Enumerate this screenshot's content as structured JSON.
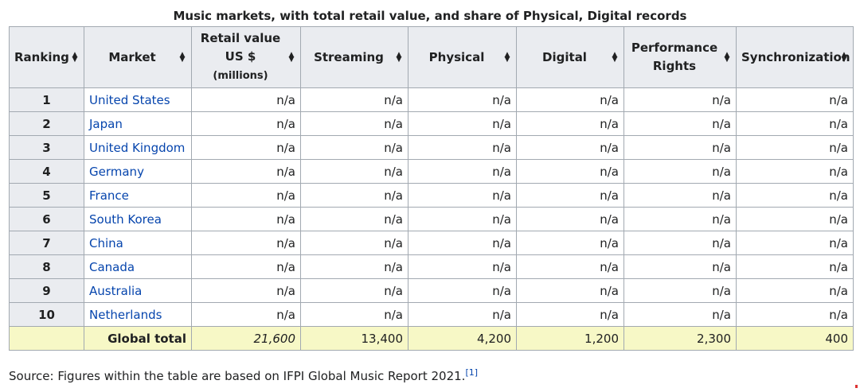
{
  "caption": "Music markets, with total retail value, and share of Physical, Digital records",
  "headers": {
    "ranking": "Ranking",
    "market": "Market",
    "retail_line1": "Retail value",
    "retail_line2": "US $",
    "retail_line3": "(millions)",
    "streaming": "Streaming",
    "physical": "Physical",
    "digital": "Digital",
    "performance_line1": "Performance",
    "performance_line2": "Rights",
    "synchronization": "Synchronization"
  },
  "sort_icon": "sort-updown-icon",
  "rows": [
    {
      "rank": "1",
      "market": "United States",
      "retail": "n/a",
      "streaming": "n/a",
      "physical": "n/a",
      "digital": "n/a",
      "performance": "n/a",
      "sync": "n/a"
    },
    {
      "rank": "2",
      "market": "Japan",
      "retail": "n/a",
      "streaming": "n/a",
      "physical": "n/a",
      "digital": "n/a",
      "performance": "n/a",
      "sync": "n/a"
    },
    {
      "rank": "3",
      "market": "United Kingdom",
      "retail": "n/a",
      "streaming": "n/a",
      "physical": "n/a",
      "digital": "n/a",
      "performance": "n/a",
      "sync": "n/a"
    },
    {
      "rank": "4",
      "market": "Germany",
      "retail": "n/a",
      "streaming": "n/a",
      "physical": "n/a",
      "digital": "n/a",
      "performance": "n/a",
      "sync": "n/a"
    },
    {
      "rank": "5",
      "market": "France",
      "retail": "n/a",
      "streaming": "n/a",
      "physical": "n/a",
      "digital": "n/a",
      "performance": "n/a",
      "sync": "n/a"
    },
    {
      "rank": "6",
      "market": "South Korea",
      "retail": "n/a",
      "streaming": "n/a",
      "physical": "n/a",
      "digital": "n/a",
      "performance": "n/a",
      "sync": "n/a"
    },
    {
      "rank": "7",
      "market": "China",
      "retail": "n/a",
      "streaming": "n/a",
      "physical": "n/a",
      "digital": "n/a",
      "performance": "n/a",
      "sync": "n/a"
    },
    {
      "rank": "8",
      "market": "Canada",
      "retail": "n/a",
      "streaming": "n/a",
      "physical": "n/a",
      "digital": "n/a",
      "performance": "n/a",
      "sync": "n/a"
    },
    {
      "rank": "9",
      "market": "Australia",
      "retail": "n/a",
      "streaming": "n/a",
      "physical": "n/a",
      "digital": "n/a",
      "performance": "n/a",
      "sync": "n/a"
    },
    {
      "rank": "10",
      "market": "Netherlands",
      "retail": "n/a",
      "streaming": "n/a",
      "physical": "n/a",
      "digital": "n/a",
      "performance": "n/a",
      "sync": "n/a"
    }
  ],
  "total": {
    "label": "Global total",
    "retail": "21,600",
    "streaming": "13,400",
    "physical": "4,200",
    "digital": "1,200",
    "performance": "2,300",
    "sync": "400"
  },
  "source": {
    "text": "Source: Figures within the table are based on IFPI Global Music Report 2021.",
    "ref": "[1]"
  },
  "colors": {
    "header_bg": "#eaecf0",
    "border": "#a2a9b1",
    "link": "#0645ad",
    "total_bg": "#f7f8c6"
  }
}
